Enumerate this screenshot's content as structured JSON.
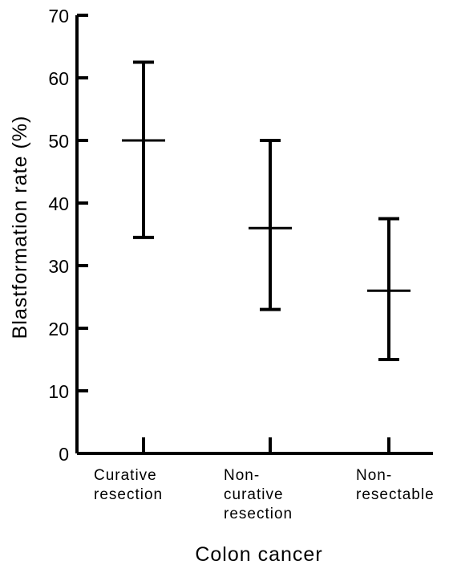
{
  "chart_data": {
    "type": "errorbar",
    "title": "",
    "ylabel": "Blastformation rate (%)",
    "xlabel": "Colon cancer",
    "ylim": [
      0,
      70
    ],
    "yticks": [
      "0",
      "10",
      "20",
      "30",
      "40",
      "50",
      "60",
      "70"
    ],
    "categories": [
      {
        "lines": [
          "Curative",
          "resection"
        ]
      },
      {
        "lines": [
          "Non-",
          "curative",
          "resection"
        ]
      },
      {
        "lines": [
          "Non-",
          "resectable"
        ]
      }
    ],
    "points": [
      {
        "mean": 50,
        "low": 34.5,
        "high": 62.5
      },
      {
        "mean": 36,
        "low": 23,
        "high": 50
      },
      {
        "mean": 26,
        "low": 15,
        "high": 37.5
      }
    ],
    "grid": false,
    "colors": {
      "ink": "#000000",
      "background": "#ffffff"
    }
  }
}
